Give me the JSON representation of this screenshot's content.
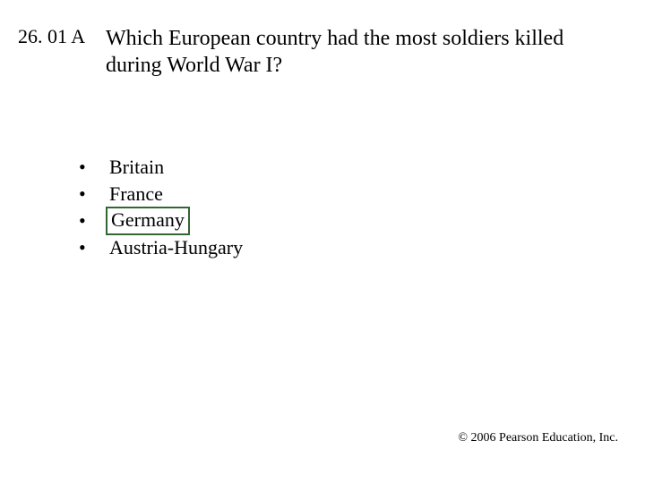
{
  "slide_number": "26. 01 A",
  "question": "Which European country had the most soldiers killed during World War I?",
  "options": [
    {
      "label": "Britain",
      "correct": false
    },
    {
      "label": "France",
      "correct": false
    },
    {
      "label": "Germany",
      "correct": true
    },
    {
      "label": "Austria-Hungary",
      "correct": false
    }
  ],
  "bullet_char": "•",
  "correct_box_color": "#336633",
  "copyright": "© 2006 Pearson Education, Inc."
}
